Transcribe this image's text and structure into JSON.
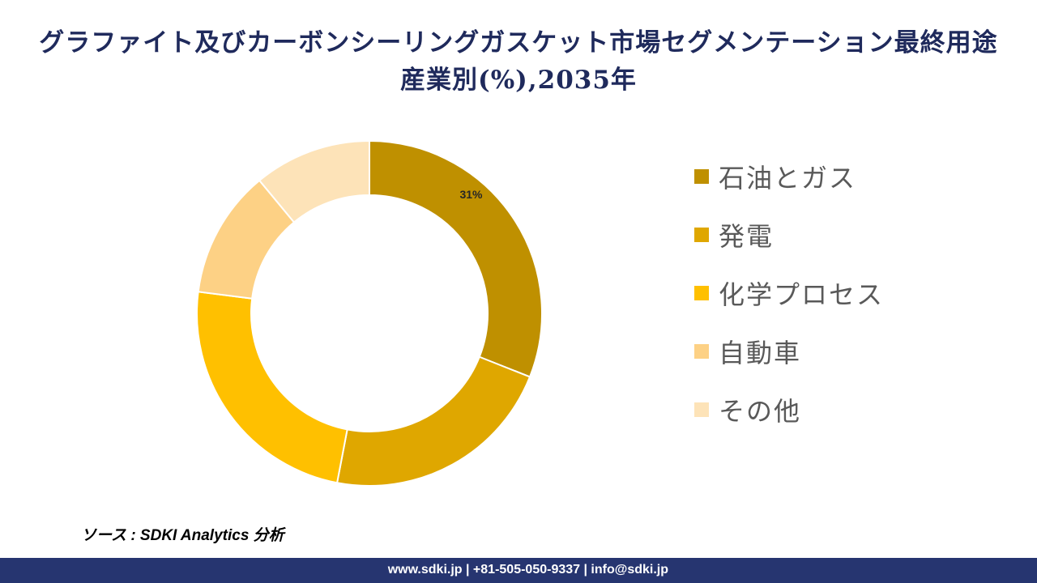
{
  "title": "グラファイト及びカーボンシーリングガスケット市場セグメンテーション最終用途産業別(%),2035年",
  "chart_data": {
    "type": "donut",
    "title": "グラファイト及びカーボンシーリングガスケット市場セグメンテーション最終用途産業別(%),2035年",
    "categories": [
      "石油とガス",
      "発電",
      "化学プロセス",
      "自動車",
      "その他"
    ],
    "values": [
      31,
      22,
      24,
      12,
      11
    ],
    "unit": "%",
    "data_labels": [
      "31%",
      "",
      "",
      "",
      ""
    ],
    "colors": [
      "#BF9000",
      "#DFA700",
      "#FFC000",
      "#FDD185",
      "#FDE3B8"
    ],
    "legend_placement": "right",
    "start_angle": "top, clockwise"
  },
  "source": "ソース : SDKI Analytics 分析",
  "footer": "www.sdki.jp | +81-505-050-9337 | info@sdki.jp"
}
